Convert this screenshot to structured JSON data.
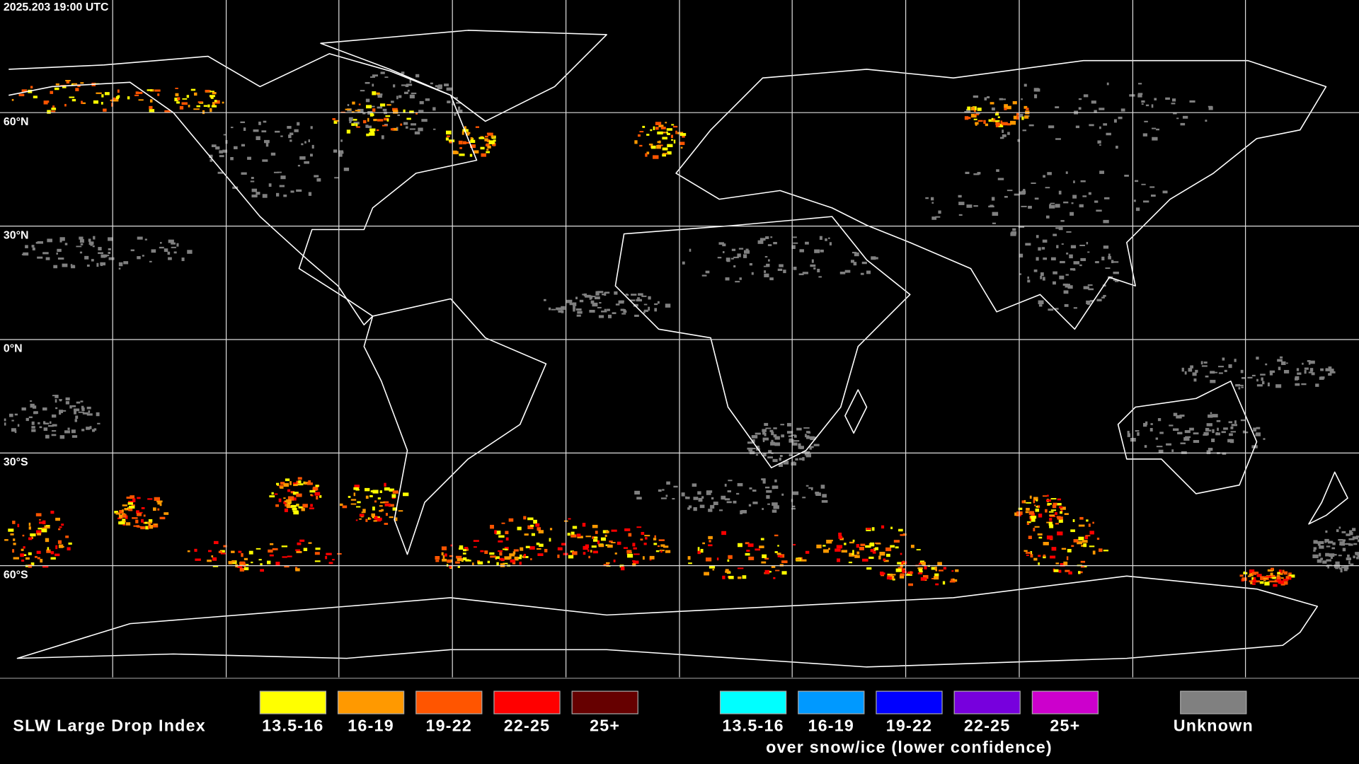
{
  "header": {
    "timestamp": "2025.203 19:00 UTC"
  },
  "map": {
    "latitude_labels": [
      "60°N",
      "30°N",
      "0°N",
      "30°S",
      "60°S"
    ]
  },
  "legend": {
    "title": "SLW Large Drop Index",
    "groups": [
      {
        "items": [
          {
            "label": "13.5-16",
            "color": "#ffff00"
          },
          {
            "label": "16-19",
            "color": "#ff9900"
          },
          {
            "label": "19-22",
            "color": "#ff5500"
          },
          {
            "label": "22-25",
            "color": "#ff0000"
          },
          {
            "label": "25+",
            "color": "#660000"
          }
        ]
      },
      {
        "items": [
          {
            "label": "13.5-16",
            "color": "#00ffff"
          },
          {
            "label": "16-19",
            "color": "#0099ff"
          },
          {
            "label": "19-22",
            "color": "#0000ff"
          },
          {
            "label": "22-25",
            "color": "#7700dd"
          },
          {
            "label": "25+",
            "color": "#cc00cc"
          }
        ],
        "caption": "over snow/ice (lower confidence)"
      }
    ],
    "unknown": {
      "label": "Unknown",
      "color": "#808080"
    }
  }
}
